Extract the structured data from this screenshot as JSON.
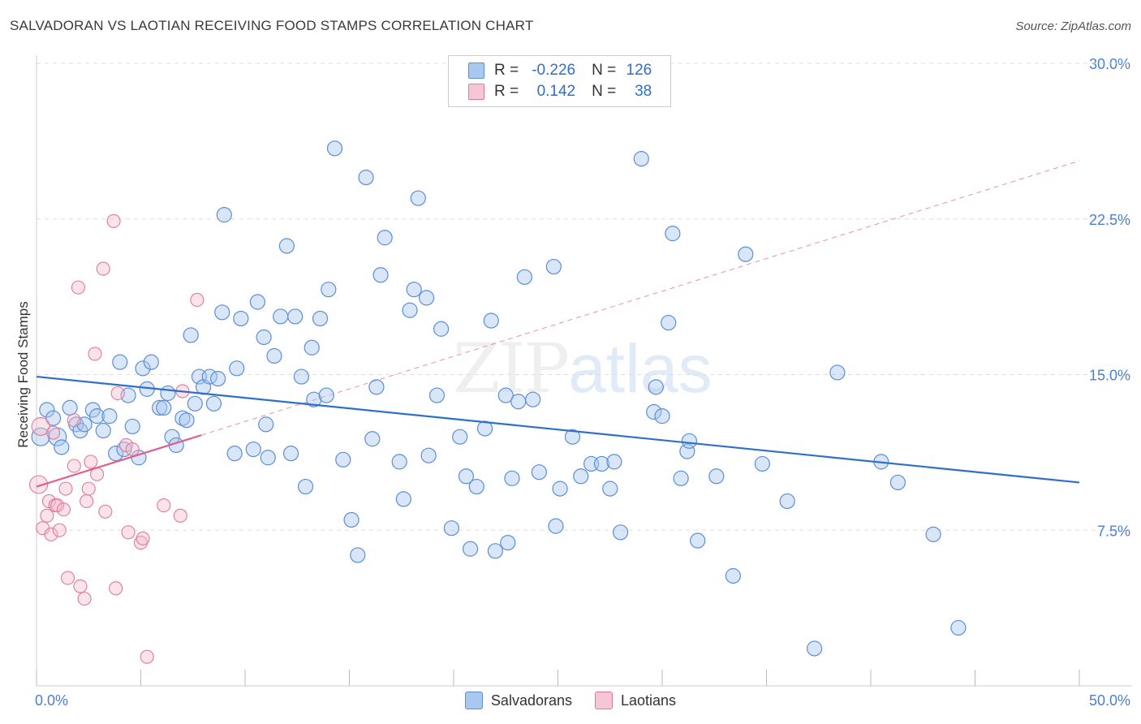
{
  "title": "SALVADORAN VS LAOTIAN RECEIVING FOOD STAMPS CORRELATION CHART",
  "source": "Source: ZipAtlas.com",
  "watermark": {
    "zip": "ZIP",
    "atlas": "atlas"
  },
  "legend": {
    "r_label": "R =",
    "n_label": "N =",
    "rows": [
      {
        "name": "Salvadorans",
        "r": "-0.226",
        "n": "126"
      },
      {
        "name": "Laotians",
        "r": "0.142",
        "n": "38"
      }
    ]
  },
  "colors": {
    "blue_fill": "#a9c8f0",
    "blue_stroke": "#5b8fd6",
    "blue_line": "#2f6fcc",
    "pink_fill": "#f5b8cb",
    "pink_stroke": "#e07a9a",
    "pink_line": "#e0608a",
    "grid": "#dddddd",
    "axis_text": "#4a7fd0"
  },
  "chart_data": {
    "type": "scatter",
    "title": "SALVADORAN VS LAOTIAN RECEIVING FOOD STAMPS CORRELATION CHART",
    "xlabel": "",
    "ylabel": "Receiving Food Stamps",
    "xlim": [
      0,
      50
    ],
    "ylim": [
      0,
      30
    ],
    "x_tick_labels": [
      "0.0%",
      "50.0%"
    ],
    "y_ticks": [
      7.5,
      15,
      22.5,
      30
    ],
    "y_tick_labels": [
      "7.5%",
      "15.0%",
      "22.5%",
      "30.0%"
    ],
    "series": [
      {
        "name": "Salvadorans",
        "color": "#5b8fd6",
        "trend": {
          "x": [
            0,
            50
          ],
          "y": [
            14.9,
            9.8
          ],
          "style": "solid"
        },
        "points": [
          [
            0.2,
            12.0
          ],
          [
            0.5,
            13.3
          ],
          [
            0.8,
            12.9
          ],
          [
            1.0,
            12.0
          ],
          [
            1.2,
            11.5
          ],
          [
            1.6,
            13.4
          ],
          [
            1.9,
            12.6
          ],
          [
            2.1,
            12.3
          ],
          [
            2.3,
            12.6
          ],
          [
            2.7,
            13.3
          ],
          [
            2.9,
            13.0
          ],
          [
            3.2,
            12.3
          ],
          [
            3.5,
            13.0
          ],
          [
            3.8,
            11.2
          ],
          [
            4.0,
            15.6
          ],
          [
            4.2,
            11.4
          ],
          [
            4.4,
            14.0
          ],
          [
            4.6,
            12.5
          ],
          [
            4.9,
            11.0
          ],
          [
            5.1,
            15.3
          ],
          [
            5.3,
            14.3
          ],
          [
            5.5,
            15.6
          ],
          [
            5.9,
            13.4
          ],
          [
            6.1,
            13.4
          ],
          [
            6.3,
            14.1
          ],
          [
            6.5,
            12.0
          ],
          [
            6.7,
            11.6
          ],
          [
            7.0,
            12.9
          ],
          [
            7.2,
            12.8
          ],
          [
            7.4,
            16.9
          ],
          [
            7.6,
            13.6
          ],
          [
            7.8,
            14.9
          ],
          [
            8.0,
            14.4
          ],
          [
            8.3,
            14.9
          ],
          [
            8.5,
            13.6
          ],
          [
            8.7,
            14.8
          ],
          [
            8.9,
            18.0
          ],
          [
            9.0,
            22.7
          ],
          [
            9.5,
            11.2
          ],
          [
            9.6,
            15.3
          ],
          [
            9.8,
            17.7
          ],
          [
            10.4,
            11.4
          ],
          [
            10.6,
            18.5
          ],
          [
            10.9,
            16.8
          ],
          [
            11.0,
            12.6
          ],
          [
            11.1,
            11.0
          ],
          [
            11.4,
            15.9
          ],
          [
            11.7,
            17.8
          ],
          [
            12.0,
            21.2
          ],
          [
            12.2,
            11.2
          ],
          [
            12.4,
            17.8
          ],
          [
            12.7,
            14.9
          ],
          [
            12.9,
            9.6
          ],
          [
            13.2,
            16.3
          ],
          [
            13.3,
            13.8
          ],
          [
            13.6,
            17.7
          ],
          [
            13.9,
            14.0
          ],
          [
            14.0,
            19.1
          ],
          [
            14.3,
            25.9
          ],
          [
            14.7,
            10.9
          ],
          [
            15.1,
            8.0
          ],
          [
            15.4,
            6.3
          ],
          [
            15.8,
            24.5
          ],
          [
            16.1,
            11.9
          ],
          [
            16.3,
            14.4
          ],
          [
            16.5,
            19.8
          ],
          [
            16.7,
            21.6
          ],
          [
            17.4,
            10.8
          ],
          [
            17.6,
            9.0
          ],
          [
            17.9,
            18.1
          ],
          [
            18.1,
            19.1
          ],
          [
            18.3,
            23.5
          ],
          [
            18.7,
            18.7
          ],
          [
            18.8,
            11.1
          ],
          [
            19.2,
            14.0
          ],
          [
            19.4,
            17.2
          ],
          [
            19.9,
            7.6
          ],
          [
            20.3,
            12.0
          ],
          [
            20.6,
            10.1
          ],
          [
            20.8,
            6.6
          ],
          [
            21.1,
            9.6
          ],
          [
            21.5,
            12.4
          ],
          [
            21.8,
            17.6
          ],
          [
            22.0,
            6.5
          ],
          [
            22.5,
            14.0
          ],
          [
            22.6,
            6.9
          ],
          [
            22.8,
            10.0
          ],
          [
            23.1,
            13.7
          ],
          [
            23.4,
            19.7
          ],
          [
            23.8,
            13.8
          ],
          [
            24.1,
            10.3
          ],
          [
            24.8,
            20.2
          ],
          [
            24.9,
            7.7
          ],
          [
            25.1,
            9.5
          ],
          [
            25.7,
            12.0
          ],
          [
            26.1,
            10.1
          ],
          [
            26.6,
            10.7
          ],
          [
            27.1,
            10.7
          ],
          [
            27.5,
            9.5
          ],
          [
            27.7,
            10.8
          ],
          [
            28.0,
            7.4
          ],
          [
            29.0,
            25.4
          ],
          [
            29.6,
            13.2
          ],
          [
            29.7,
            14.4
          ],
          [
            30.0,
            13.0
          ],
          [
            30.3,
            17.5
          ],
          [
            30.5,
            21.8
          ],
          [
            30.9,
            10.0
          ],
          [
            31.2,
            11.3
          ],
          [
            31.3,
            11.8
          ],
          [
            31.7,
            7.0
          ],
          [
            32.6,
            10.1
          ],
          [
            33.4,
            5.3
          ],
          [
            34.0,
            20.8
          ],
          [
            34.8,
            10.7
          ],
          [
            36.0,
            8.9
          ],
          [
            37.3,
            1.8
          ],
          [
            38.4,
            15.1
          ],
          [
            40.5,
            10.8
          ],
          [
            41.3,
            9.8
          ],
          [
            43.0,
            7.3
          ],
          [
            44.2,
            2.8
          ]
        ]
      },
      {
        "name": "Laotians",
        "color": "#e07a9a",
        "trend": {
          "x": [
            0,
            50
          ],
          "y": [
            9.6,
            25.3
          ],
          "style": "solid-then-dashed",
          "solid_until_x": 7.9
        },
        "points": [
          [
            0.1,
            9.7
          ],
          [
            0.2,
            12.5
          ],
          [
            0.3,
            7.6
          ],
          [
            0.5,
            8.2
          ],
          [
            0.6,
            8.9
          ],
          [
            0.7,
            7.3
          ],
          [
            0.8,
            12.2
          ],
          [
            0.9,
            8.7
          ],
          [
            1.0,
            8.7
          ],
          [
            1.1,
            7.5
          ],
          [
            1.3,
            8.5
          ],
          [
            1.4,
            9.5
          ],
          [
            1.5,
            5.2
          ],
          [
            1.8,
            10.6
          ],
          [
            1.8,
            12.8
          ],
          [
            2.0,
            19.2
          ],
          [
            2.1,
            4.8
          ],
          [
            2.3,
            4.2
          ],
          [
            2.4,
            8.9
          ],
          [
            2.5,
            9.5
          ],
          [
            2.6,
            10.8
          ],
          [
            2.8,
            16.0
          ],
          [
            2.9,
            10.2
          ],
          [
            3.2,
            20.1
          ],
          [
            3.3,
            8.4
          ],
          [
            3.7,
            22.4
          ],
          [
            3.8,
            4.7
          ],
          [
            3.9,
            14.1
          ],
          [
            4.3,
            11.6
          ],
          [
            4.4,
            7.4
          ],
          [
            4.6,
            11.4
          ],
          [
            5.0,
            6.9
          ],
          [
            5.1,
            7.1
          ],
          [
            5.3,
            1.4
          ],
          [
            6.1,
            8.7
          ],
          [
            6.9,
            8.2
          ],
          [
            7.0,
            14.2
          ],
          [
            7.7,
            18.6
          ]
        ]
      }
    ]
  }
}
